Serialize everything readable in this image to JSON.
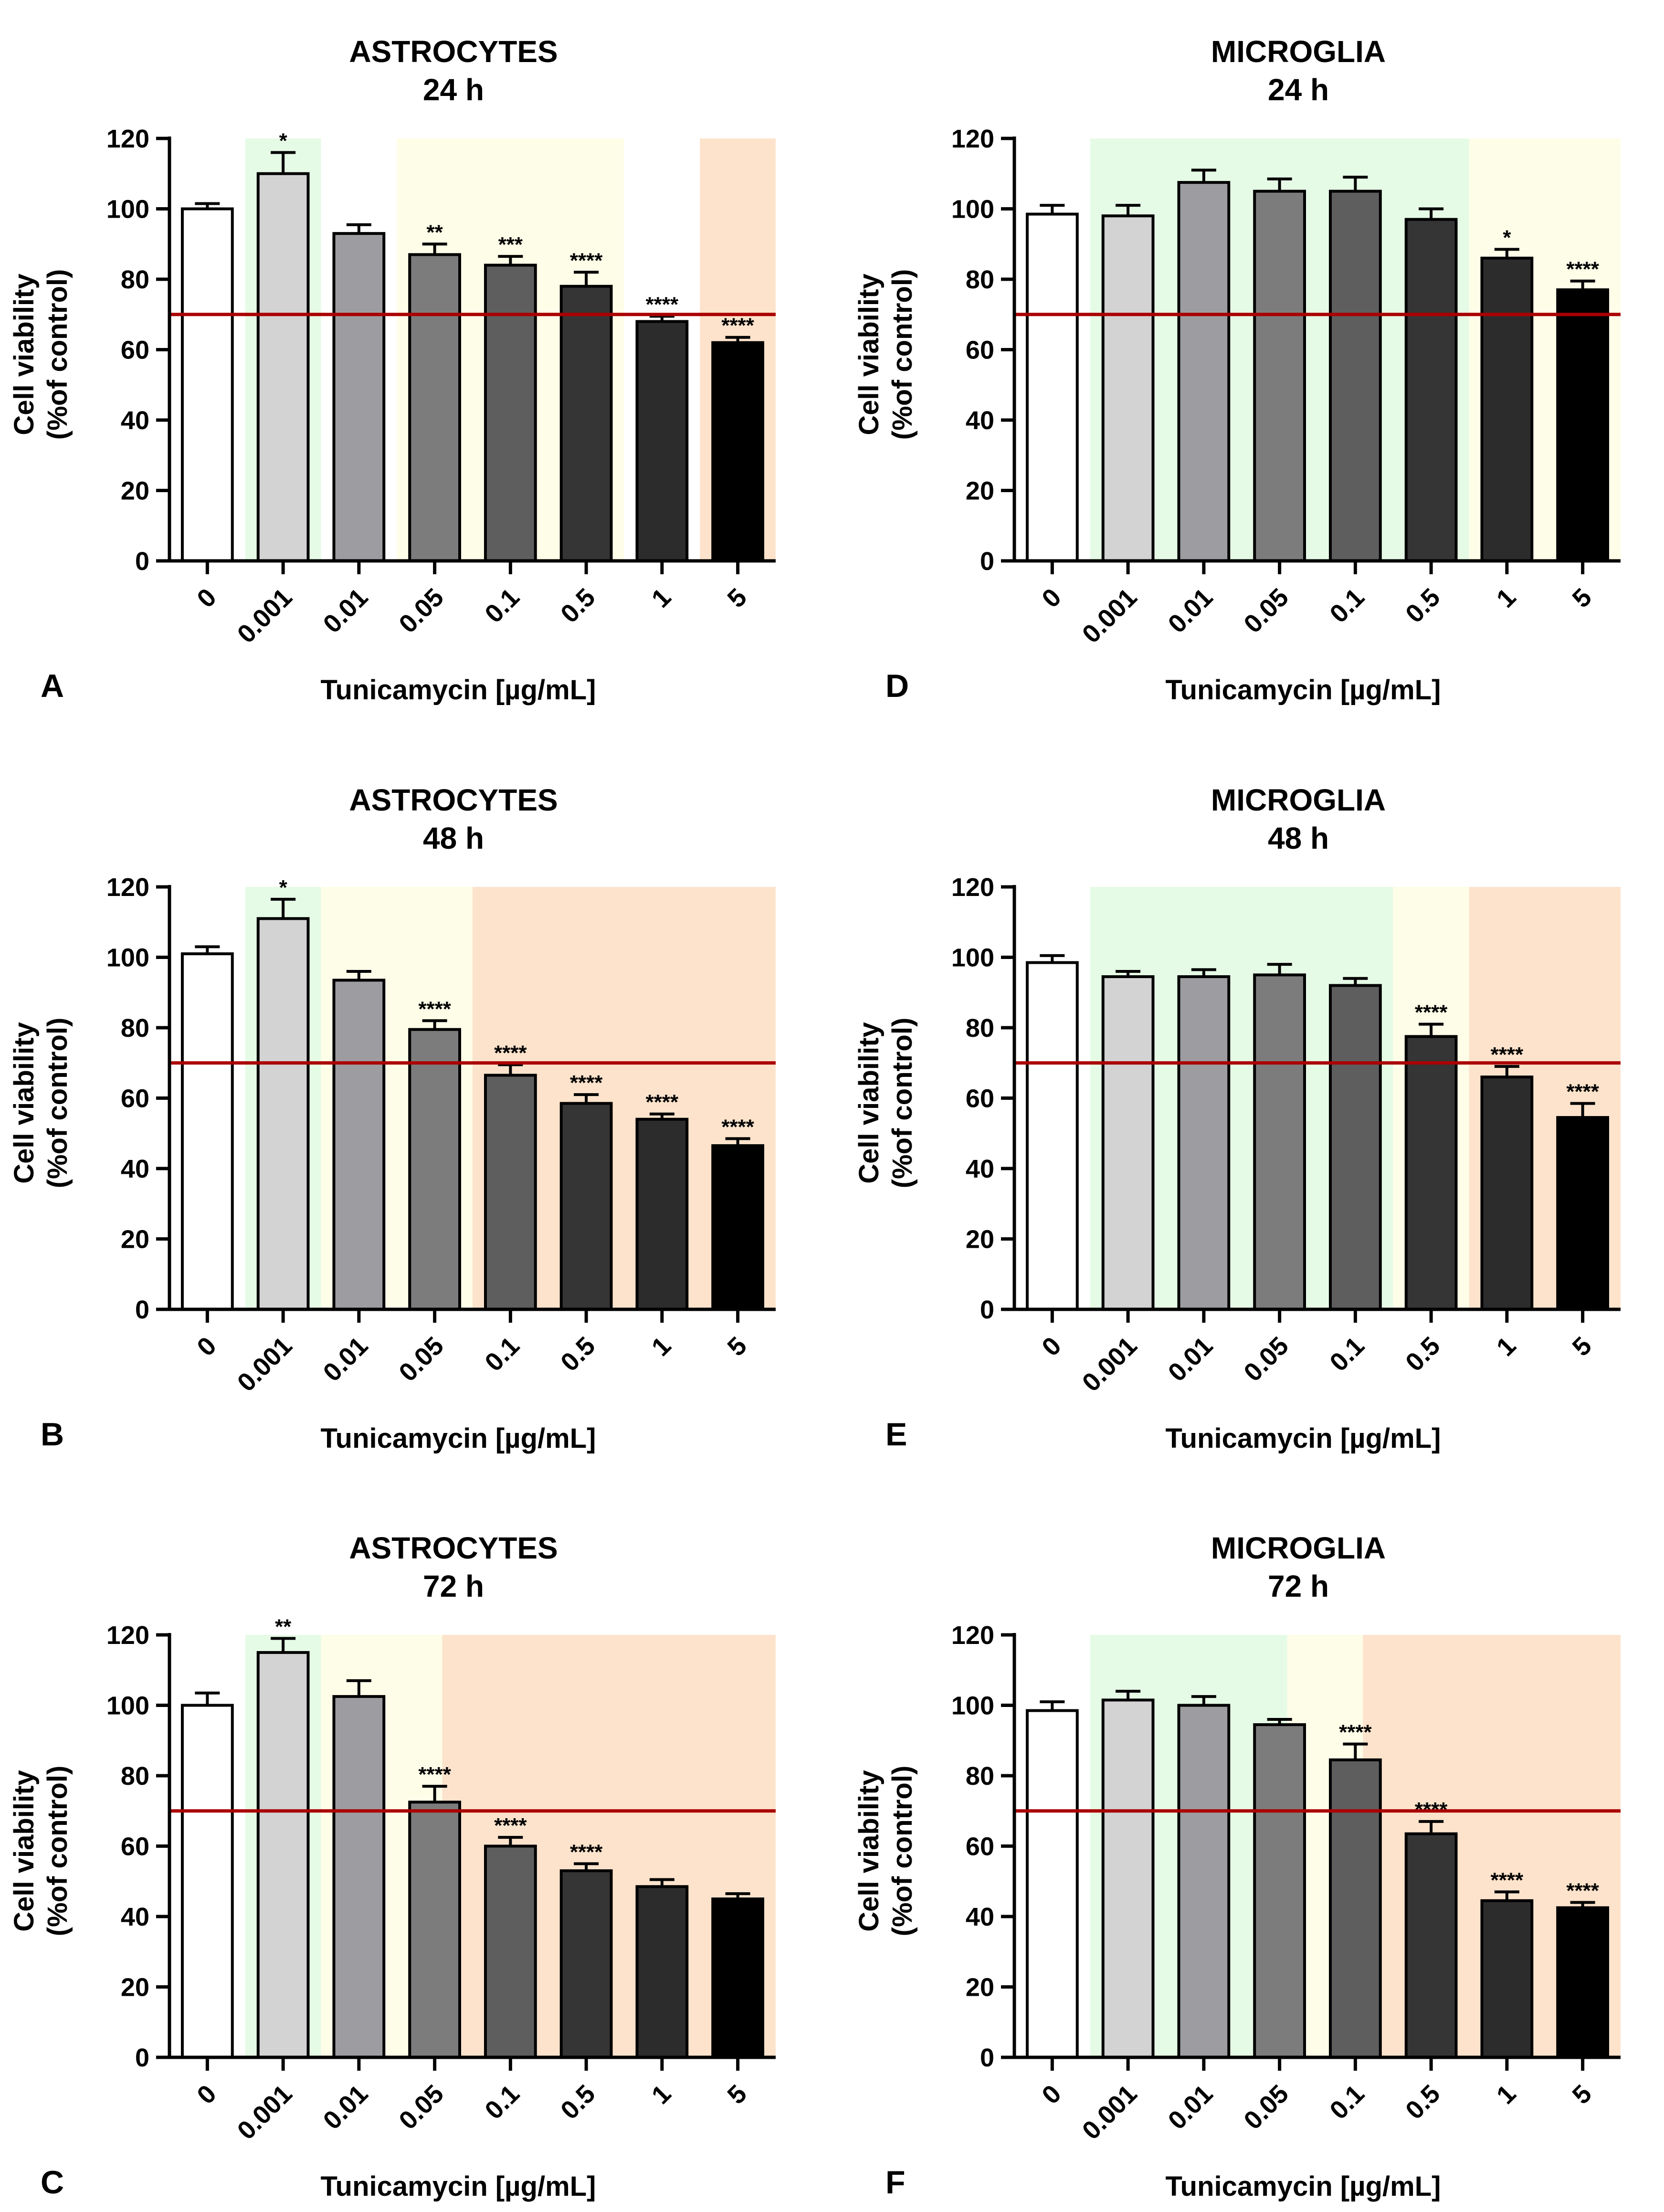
{
  "chart_data": [
    {
      "type": "bar",
      "panel_label": "A",
      "title": "ASTROCYTES",
      "subtitle": "24 h",
      "xlabel": "Tunicamycin [µg/mL]",
      "ylabel": [
        "Cell viability",
        "(%of control)"
      ],
      "categories": [
        "0",
        "0.001",
        "0.01",
        "0.05",
        "0.1",
        "0.5",
        "1",
        "5"
      ],
      "values": [
        100,
        110,
        93,
        87,
        84,
        78,
        68,
        62
      ],
      "errors": [
        1.5,
        6,
        2.5,
        3,
        2.5,
        4,
        1.5,
        1.5
      ],
      "significance": [
        "",
        "*",
        "",
        "**",
        "***",
        "****",
        "****",
        "****"
      ],
      "ylim": [
        0,
        120
      ],
      "yticks": [
        0,
        20,
        40,
        60,
        80,
        100,
        120
      ],
      "threshold": 70,
      "background_zones": [
        {
          "from": 1,
          "to": 2,
          "color": "#e6fbe6"
        },
        {
          "from": 3,
          "to": 6,
          "color": "#fefde8"
        },
        {
          "from": 7,
          "to": 8,
          "color": "#fde3cc"
        }
      ]
    },
    {
      "type": "bar",
      "panel_label": "B",
      "title": "ASTROCYTES",
      "subtitle": "48 h",
      "xlabel": "Tunicamycin [µg/mL]",
      "ylabel": [
        "Cell viability",
        "(%of control)"
      ],
      "categories": [
        "0",
        "0.001",
        "0.01",
        "0.05",
        "0.1",
        "0.5",
        "1",
        "5"
      ],
      "values": [
        101,
        111,
        93.5,
        79.5,
        66.5,
        58.5,
        54,
        46.5
      ],
      "errors": [
        2,
        5.5,
        2.5,
        2.5,
        3,
        2.5,
        1.5,
        2
      ],
      "significance": [
        "",
        "*",
        "",
        "****",
        "****",
        "****",
        "****",
        "****"
      ],
      "ylim": [
        0,
        120
      ],
      "yticks": [
        0,
        20,
        40,
        60,
        80,
        100,
        120
      ],
      "threshold": 70,
      "background_zones": [
        {
          "from": 1,
          "to": 2,
          "color": "#e6fbe6"
        },
        {
          "from": 2,
          "to": 4,
          "color": "#fefde8"
        },
        {
          "from": 4,
          "to": 8,
          "color": "#fde3cc"
        }
      ]
    },
    {
      "type": "bar",
      "panel_label": "C",
      "title": "ASTROCYTES",
      "subtitle": "72 h",
      "xlabel": "Tunicamycin [µg/mL]",
      "ylabel": [
        "Cell viability",
        "(%of control)"
      ],
      "categories": [
        "0",
        "0.001",
        "0.01",
        "0.05",
        "0.1",
        "0.5",
        "1",
        "5"
      ],
      "values": [
        100,
        115,
        102.5,
        72.5,
        60,
        53,
        48.5,
        45
      ],
      "errors": [
        3.5,
        4,
        4.5,
        4.5,
        2.5,
        2,
        2,
        1.5
      ],
      "significance": [
        "",
        "**",
        "",
        "****",
        "****",
        "****",
        "",
        ""
      ],
      "ylim": [
        0,
        120
      ],
      "yticks": [
        0,
        20,
        40,
        60,
        80,
        100,
        120
      ],
      "threshold": 70,
      "background_zones": [
        {
          "from": 1,
          "to": 2,
          "color": "#e6fbe6"
        },
        {
          "from": 2,
          "to": 3.6,
          "color": "#fefde8"
        },
        {
          "from": 3.6,
          "to": 8,
          "color": "#fde3cc"
        }
      ]
    },
    {
      "type": "bar",
      "panel_label": "D",
      "title": "MICROGLIA",
      "subtitle": "24 h",
      "xlabel": "Tunicamycin [µg/mL]",
      "ylabel": [
        "Cell viability",
        "(%of control)"
      ],
      "categories": [
        "0",
        "0.001",
        "0.01",
        "0.05",
        "0.1",
        "0.5",
        "1",
        "5"
      ],
      "values": [
        98.5,
        98,
        107.5,
        105,
        105,
        97,
        86,
        77
      ],
      "errors": [
        2.5,
        3,
        3.5,
        3.5,
        4,
        3,
        2.5,
        2.5
      ],
      "significance": [
        "",
        "",
        "",
        "",
        "",
        "",
        "*",
        "****"
      ],
      "ylim": [
        0,
        120
      ],
      "yticks": [
        0,
        20,
        40,
        60,
        80,
        100,
        120
      ],
      "threshold": 70,
      "background_zones": [
        {
          "from": 1,
          "to": 6,
          "color": "#e6fbe6"
        },
        {
          "from": 6,
          "to": 8,
          "color": "#fefde8"
        }
      ]
    },
    {
      "type": "bar",
      "panel_label": "E",
      "title": "MICROGLIA",
      "subtitle": "48 h",
      "xlabel": "Tunicamycin [µg/mL]",
      "ylabel": [
        "Cell viability",
        "(%of control)"
      ],
      "categories": [
        "0",
        "0.001",
        "0.01",
        "0.05",
        "0.1",
        "0.5",
        "1",
        "5"
      ],
      "values": [
        98.5,
        94.5,
        94.5,
        95,
        92,
        77.5,
        66,
        54.5
      ],
      "errors": [
        2,
        1.5,
        2,
        3,
        2,
        3.5,
        3,
        4
      ],
      "significance": [
        "",
        "",
        "",
        "",
        "",
        "****",
        "****",
        "****"
      ],
      "ylim": [
        0,
        120
      ],
      "yticks": [
        0,
        20,
        40,
        60,
        80,
        100,
        120
      ],
      "threshold": 70,
      "background_zones": [
        {
          "from": 1,
          "to": 5,
          "color": "#e6fbe6"
        },
        {
          "from": 5,
          "to": 6,
          "color": "#fefde8"
        },
        {
          "from": 6,
          "to": 8,
          "color": "#fde3cc"
        }
      ]
    },
    {
      "type": "bar",
      "panel_label": "F",
      "title": "MICROGLIA",
      "subtitle": "72 h",
      "xlabel": "Tunicamycin [µg/mL]",
      "ylabel": [
        "Cell viability",
        "(%of control)"
      ],
      "categories": [
        "0",
        "0.001",
        "0.01",
        "0.05",
        "0.1",
        "0.5",
        "1",
        "5"
      ],
      "values": [
        98.5,
        101.5,
        100,
        94.5,
        84.5,
        63.5,
        44.5,
        42.5
      ],
      "errors": [
        2.5,
        2.5,
        2.5,
        1.5,
        4.5,
        3.5,
        2.5,
        1.5
      ],
      "significance": [
        "",
        "",
        "",
        "",
        "****",
        "****",
        "****",
        "****"
      ],
      "ylim": [
        0,
        120
      ],
      "yticks": [
        0,
        20,
        40,
        60,
        80,
        100,
        120
      ],
      "threshold": 70,
      "background_zones": [
        {
          "from": 1,
          "to": 3.6,
          "color": "#e6fbe6"
        },
        {
          "from": 3.6,
          "to": 4.6,
          "color": "#fefde8"
        },
        {
          "from": 4.6,
          "to": 8,
          "color": "#fde3cc"
        }
      ]
    }
  ],
  "colors": {
    "bars": [
      "#ffffff",
      "#d3d3d3",
      "#9d9da1",
      "#7c7c7c",
      "#5e5e5e",
      "#353535",
      "#2c2c2c",
      "#000000"
    ],
    "threshold_line": "#aa0000",
    "axis": "#000000"
  }
}
